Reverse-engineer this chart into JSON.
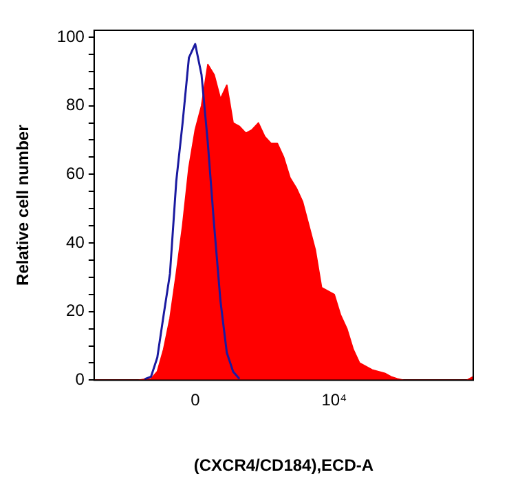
{
  "chart_data": {
    "type": "area",
    "xlabel": "(CXCR4/CD184),ECD-A",
    "ylabel": "Relative cell number",
    "categories": [
      null,
      null,
      null,
      null,
      null,
      null,
      null,
      null,
      null,
      null,
      null,
      null,
      null,
      null,
      null,
      null,
      "0",
      null,
      null,
      null,
      null,
      null,
      null,
      null,
      null,
      null,
      null,
      null,
      null,
      null,
      null,
      null,
      null,
      null,
      null,
      null,
      null,
      null,
      "10⁴",
      null,
      null,
      null,
      null,
      null,
      null,
      null,
      null,
      null,
      null,
      null,
      null,
      null,
      null,
      null,
      null,
      null,
      null,
      null,
      null,
      null,
      null
    ],
    "series": [
      {
        "color": "#ff0000",
        "values": [
          0,
          0,
          0,
          0,
          0,
          0,
          0,
          0,
          0.3,
          0.4,
          2.5,
          9,
          18,
          31,
          45,
          62,
          73,
          80,
          92,
          89,
          82,
          86,
          75,
          74,
          72,
          73,
          75,
          71,
          69,
          69,
          65,
          59,
          56,
          52,
          45,
          38,
          27,
          26,
          25,
          19,
          15,
          9,
          5,
          4,
          3,
          2.5,
          2,
          1,
          0.4,
          0,
          0,
          0,
          0,
          0,
          0,
          0,
          0,
          0,
          0,
          0,
          1
        ]
      },
      {
        "type": "line",
        "color": "#1a1aa0",
        "values": [
          null,
          null,
          null,
          null,
          null,
          null,
          null,
          null,
          0.3,
          1,
          6.6,
          19,
          31,
          58,
          75,
          94,
          98,
          89,
          69,
          45,
          23,
          8,
          2.5,
          0.4,
          null,
          null,
          null,
          null,
          null,
          null,
          null,
          null,
          null,
          null,
          null,
          null,
          null,
          null,
          null,
          null,
          null,
          null,
          null,
          null,
          null,
          null,
          null,
          null,
          null,
          null,
          null,
          null,
          null,
          null,
          null,
          null,
          null,
          null,
          null,
          null,
          null
        ]
      }
    ],
    "ylim": [
      0,
      102
    ],
    "yticks": [
      0,
      {
        "value": 5,
        "label": null
      },
      {
        "value": 10,
        "label": null
      },
      {
        "value": 15,
        "label": null
      },
      20,
      {
        "value": 25,
        "label": null
      },
      {
        "value": 30,
        "label": null
      },
      {
        "value": 35,
        "label": null
      },
      40,
      {
        "value": 45,
        "label": null
      },
      {
        "value": 50,
        "label": null
      },
      {
        "value": 55,
        "label": null
      },
      60,
      {
        "value": 65,
        "label": null
      },
      {
        "value": 70,
        "label": null
      },
      {
        "value": 75,
        "label": null
      },
      80,
      {
        "value": 85,
        "label": null
      },
      {
        "value": 90,
        "label": null
      },
      {
        "value": 95,
        "label": null
      },
      100
    ],
    "grid": false,
    "legend": false
  }
}
